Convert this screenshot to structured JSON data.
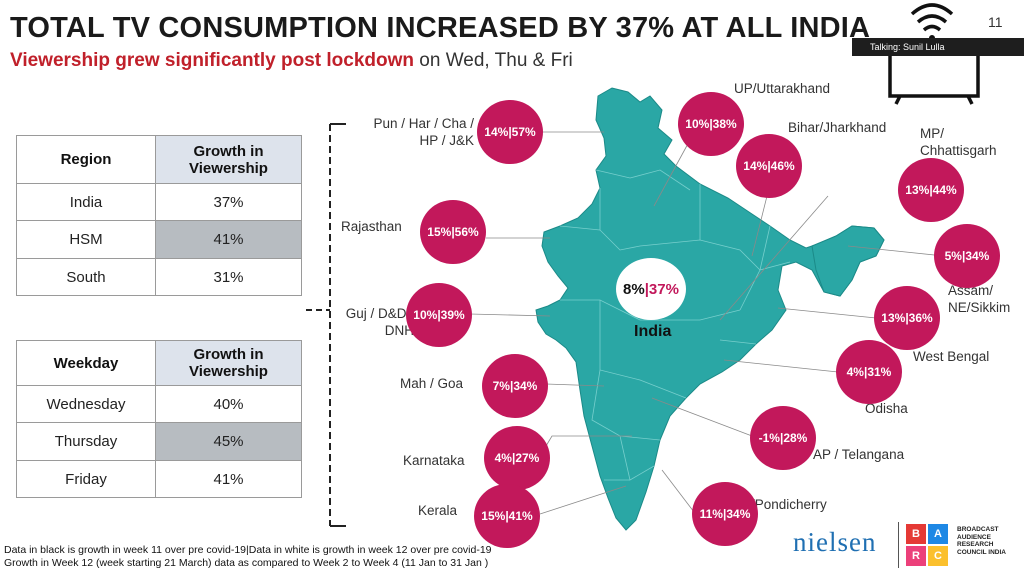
{
  "header": {
    "title": "TOTAL TV CONSUMPTION INCREASED BY 37% AT ALL INDIA",
    "subtitle_highlight": "Viewership grew significantly post lockdown",
    "subtitle_rest": " on Wed, Thu & Fri",
    "page_number": "11"
  },
  "talking": "Talking: Sunil Lulla",
  "region_table": {
    "col1": "Region",
    "col2": "Growth in Viewership",
    "rows": [
      {
        "name": "India",
        "value": "37%"
      },
      {
        "name": "HSM",
        "value": "41%"
      },
      {
        "name": "South",
        "value": "31%"
      }
    ]
  },
  "weekday_table": {
    "col1": "Weekday",
    "col2": "Growth in Viewership",
    "rows": [
      {
        "name": "Wednesday",
        "value": "40%"
      },
      {
        "name": "Thursday",
        "value": "45%"
      },
      {
        "name": "Friday",
        "value": "41%"
      }
    ]
  },
  "map": {
    "center_label": "India",
    "center_black": "8%",
    "center_pink": "37%",
    "regions": [
      {
        "label": "Pun / Har / Cha / HP / J&K",
        "black": "14%",
        "white": "57%"
      },
      {
        "label": "UP/Uttarakhand",
        "black": "10%",
        "white": "38%"
      },
      {
        "label": "Bihar/Jharkhand",
        "black": "14%",
        "white": "46%"
      },
      {
        "label": "MP/ Chhattisgarh",
        "black": "13%",
        "white": "44%"
      },
      {
        "label": "Rajasthan",
        "black": "15%",
        "white": "56%"
      },
      {
        "label": "Assam/ NE/Sikkim",
        "black": "5%",
        "white": "34%"
      },
      {
        "label": "Guj / D&D / DNH",
        "black": "10%",
        "white": "39%"
      },
      {
        "label": "West Bengal",
        "black": "13%",
        "white": "36%"
      },
      {
        "label": "Mah / Goa",
        "black": "7%",
        "white": "34%"
      },
      {
        "label": "Odisha",
        "black": "4%",
        "white": "31%"
      },
      {
        "label": "Karnataka",
        "black": "4%",
        "white": "27%"
      },
      {
        "label": "AP / Telangana",
        "black": "-1%",
        "white": "28%"
      },
      {
        "label": "Kerala",
        "black": "15%",
        "white": "41%"
      },
      {
        "label": "TN/Pondicherry",
        "black": "11%",
        "white": "34%"
      }
    ]
  },
  "footnotes": {
    "line1": "Data in black is growth in week 11 over pre covid-19|Data in white is growth in week 12 over pre covid-19",
    "line2": "Growth in Week 12 (week starting 21 March) data as compared to Week 2 to Week 4 (11 Jan to 31 Jan )"
  },
  "logos": {
    "nielsen": "nielsen",
    "barc_letters": [
      "B",
      "A",
      "R",
      "C"
    ],
    "barc_text": "BROADCAST AUDIENCE RESEARCH COUNCIL INDIA"
  },
  "colors": {
    "bubble": "#c2185b",
    "map": "#2aa7a5",
    "title_red": "#c0202a",
    "barc_b": "#e53935",
    "barc_a": "#1e88e5",
    "barc_r": "#ec407a",
    "barc_c": "#fbc02d"
  }
}
